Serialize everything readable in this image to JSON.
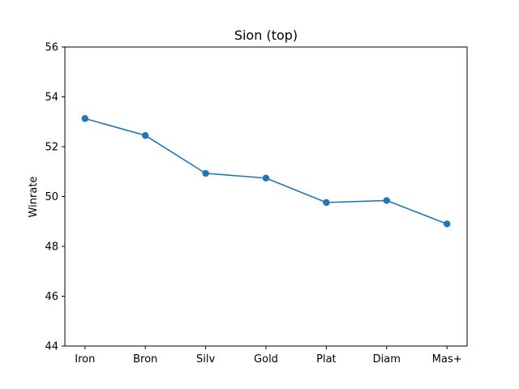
{
  "chart_data": {
    "type": "line",
    "title": "Sion (top)",
    "xlabel": "",
    "ylabel": "Winrate",
    "categories": [
      "Iron",
      "Bron",
      "Silv",
      "Gold",
      "Plat",
      "Diam",
      "Mas+"
    ],
    "series": [
      {
        "values": [
          53.13,
          52.45,
          50.93,
          50.74,
          49.76,
          49.84,
          48.9
        ]
      }
    ],
    "ylim": [
      44,
      56
    ],
    "yticks": [
      44,
      46,
      48,
      50,
      52,
      54,
      56
    ],
    "grid": false,
    "colors": {
      "series": "#1f77b4",
      "axes": "#000000"
    }
  }
}
